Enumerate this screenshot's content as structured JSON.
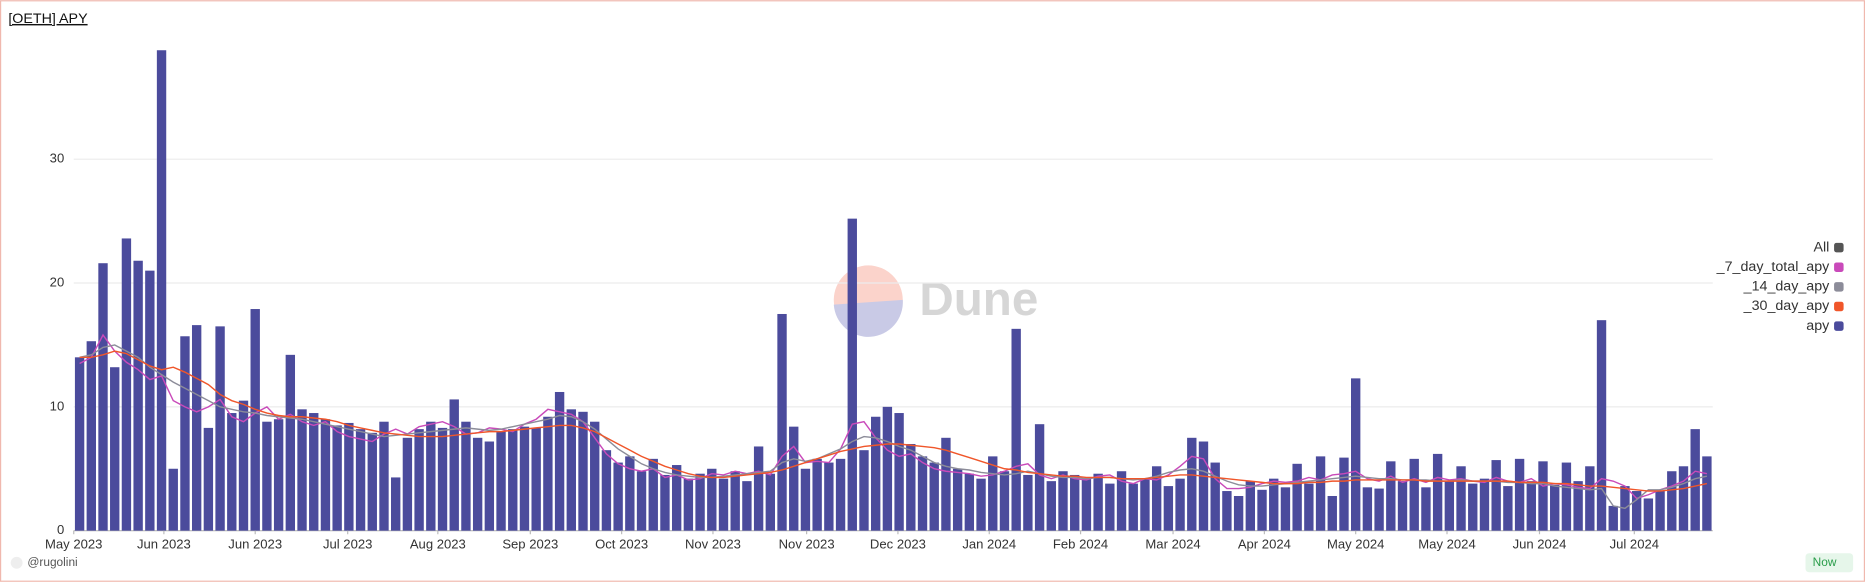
{
  "chart_data": {
    "type": "bar",
    "title": "[OETH] APY",
    "categories": [
      null,
      null,
      null,
      null,
      null,
      null,
      null,
      null,
      null,
      null,
      null,
      null,
      null,
      null,
      null,
      null,
      null,
      null,
      null,
      null,
      null,
      null,
      null,
      null,
      null,
      null,
      null,
      null,
      null,
      null,
      null,
      null,
      null,
      null,
      null,
      null,
      null,
      null,
      null,
      null,
      null,
      null,
      null,
      null,
      null,
      null,
      null,
      null,
      null,
      null,
      null,
      null,
      null,
      null,
      null,
      null,
      null,
      null,
      null,
      null,
      null,
      null,
      null,
      null,
      null,
      null,
      null,
      null,
      null,
      null,
      null,
      null,
      null,
      null,
      null,
      null,
      null,
      null,
      null,
      null,
      null,
      null,
      null,
      null,
      null,
      null,
      null,
      null,
      null,
      null,
      null,
      null,
      null,
      null,
      null,
      null,
      null,
      null,
      null,
      null,
      null,
      null,
      null,
      null,
      null,
      null,
      null,
      null,
      null,
      null,
      null,
      null,
      null,
      null,
      null,
      null,
      null,
      null,
      null,
      null,
      null,
      null,
      null,
      null,
      null,
      null,
      null,
      null,
      null,
      null,
      null,
      null,
      null,
      null,
      null,
      null,
      null,
      null,
      null,
      null
    ],
    "xticks": [
      {
        "value": 0,
        "label": "May 2023"
      },
      {
        "value": 7.7,
        "label": "Jun 2023"
      },
      {
        "value": 15.5,
        "label": "Jun 2023"
      },
      {
        "value": 23.4,
        "label": "Jul 2023"
      },
      {
        "value": 31.1,
        "label": "Aug 2023"
      },
      {
        "value": 39,
        "label": "Sep 2023"
      },
      {
        "value": 46.8,
        "label": "Oct 2023"
      },
      {
        "value": 54.6,
        "label": "Nov 2023"
      },
      {
        "value": 62.6,
        "label": "Nov 2023"
      },
      {
        "value": 70.4,
        "label": "Dec 2023"
      },
      {
        "value": 78.2,
        "label": "Jan 2024"
      },
      {
        "value": 86,
        "label": "Feb 2024"
      },
      {
        "value": 93.9,
        "label": "Mar 2024"
      },
      {
        "value": 101.7,
        "label": "Apr 2024"
      },
      {
        "value": 109.5,
        "label": "May 2024"
      },
      {
        "value": 117.3,
        "label": "May 2024"
      },
      {
        "value": 125.2,
        "label": "Jun 2024"
      },
      {
        "value": 133.3,
        "label": "Jul 2024"
      }
    ],
    "ylim": [
      0,
      39
    ],
    "yticks": [
      0,
      10,
      20,
      30
    ],
    "grid": true,
    "legend_title": "All",
    "legend_title_color": "#555555",
    "legend": "right",
    "series": [
      {
        "name": "_7_day_total_apy",
        "type": "line",
        "color": "#c94aba",
        "values": [
          13.5,
          14,
          15.8,
          14.5,
          13.6,
          13,
          12.2,
          12.5,
          10.5,
          10,
          9.6,
          10,
          10.6,
          9.2,
          8.8,
          9.5,
          10,
          9,
          9.4,
          8.8,
          8.5,
          8.8,
          8,
          7.6,
          7.4,
          7.2,
          7.8,
          8.2,
          7.8,
          8.4,
          8.6,
          8.8,
          8.4,
          7.8,
          7.9,
          8.3,
          8.2,
          8,
          8.6,
          9,
          9.8,
          9.6,
          9.4,
          8.8,
          7.5,
          6.2,
          5.4,
          5,
          4.8,
          5,
          4.3,
          4.5,
          4.1,
          4.2,
          4.6,
          4.5,
          4.8,
          4.6,
          4.8,
          4.5,
          6,
          6.8,
          5.5,
          5.6,
          5.5,
          6.6,
          8.6,
          8.8,
          7.5,
          6.5,
          6,
          6.2,
          5.5,
          5,
          4.8,
          4.7,
          4.6,
          4.4,
          4.5,
          4.8,
          5.2,
          5.4,
          4.5,
          4.2,
          4.5,
          4.2,
          4.1,
          4.4,
          4.5,
          4,
          3.8,
          4.2,
          4.1,
          4.5,
          5.2,
          6,
          5.8,
          4.2,
          3.4,
          3.4,
          3.5,
          3.8,
          4,
          3.9,
          4,
          4.3,
          4.1,
          4.5,
          4.6,
          4.8,
          4.2,
          4,
          4.4,
          3.9,
          4.2,
          3.9,
          4.3,
          4.1,
          4.2,
          4,
          3.9,
          4.3,
          4,
          3.9,
          4.2,
          3.6,
          3.8,
          3.7,
          3.5,
          3.4,
          4.2,
          4,
          3.6,
          2.6,
          2.9,
          3.3,
          3.6,
          4,
          4.8,
          4.6
        ]
      },
      {
        "name": "_14_day_apy",
        "type": "line",
        "color": "#8c8c99",
        "values": [
          14,
          14.2,
          14.8,
          15,
          14.5,
          14,
          13.2,
          12.6,
          12,
          11.5,
          11,
          10.5,
          10,
          9.8,
          9.6,
          9.5,
          9.3,
          9.2,
          9.1,
          9,
          8.8,
          8.6,
          8.4,
          8.2,
          8,
          7.8,
          7.6,
          7.7,
          7.8,
          7.9,
          8,
          8.1,
          8.2,
          8.3,
          8.2,
          8.1,
          8.2,
          8.4,
          8.6,
          8.8,
          9,
          9.3,
          9.2,
          8.8,
          8.2,
          7.4,
          6.6,
          6,
          5.4,
          5,
          4.7,
          4.5,
          4.4,
          4.3,
          4.3,
          4.4,
          4.5,
          4.6,
          4.7,
          4.8,
          5.5,
          5.8,
          5.6,
          5.8,
          6.2,
          6.6,
          7.2,
          7.6,
          7.5,
          7.2,
          6.8,
          6.5,
          6,
          5.5,
          5.2,
          5,
          4.9,
          4.7,
          4.6,
          4.5,
          4.6,
          4.8,
          4.6,
          4.4,
          4.3,
          4.3,
          4.2,
          4.3,
          4.3,
          4.2,
          4.1,
          4.2,
          4.4,
          4.7,
          4.9,
          5,
          4.8,
          4.4,
          4,
          3.7,
          3.6,
          3.6,
          3.7,
          3.8,
          3.9,
          4,
          4.1,
          4.2,
          4.3,
          4.4,
          4.3,
          4.2,
          4.2,
          4.1,
          4.1,
          4.1,
          4,
          4,
          4.1,
          4,
          4,
          4,
          3.9,
          3.9,
          3.8,
          3.8,
          3.6,
          3.5,
          3.4,
          3.3,
          3.4,
          2,
          1.8,
          2.5,
          3.3,
          3.3,
          3.5,
          3.8,
          4.2,
          4.4
        ]
      },
      {
        "name": "_30_day_apy",
        "type": "line",
        "color": "#f0562a",
        "values": [
          14,
          14,
          14.2,
          14.5,
          14.3,
          13.8,
          13.3,
          13,
          13.2,
          12.8,
          12.3,
          11.8,
          11,
          10.5,
          10.2,
          9.8,
          9.5,
          9.3,
          9.2,
          9.2,
          9.1,
          9,
          8.8,
          8.5,
          8.3,
          8.1,
          7.9,
          7.8,
          7.7,
          7.6,
          7.6,
          7.6,
          7.7,
          7.8,
          7.9,
          8,
          8,
          8.1,
          8.2,
          8.3,
          8.4,
          8.5,
          8.5,
          8.3,
          8,
          7.5,
          7,
          6.5,
          6,
          5.6,
          5.2,
          4.9,
          4.6,
          4.4,
          4.3,
          4.3,
          4.4,
          4.5,
          4.6,
          4.7,
          4.9,
          5.2,
          5.5,
          5.8,
          6.1,
          6.4,
          6.6,
          6.8,
          6.9,
          7,
          7,
          6.9,
          6.8,
          6.7,
          6.5,
          6.2,
          5.9,
          5.6,
          5.3,
          5,
          4.9,
          4.7,
          4.6,
          4.5,
          4.4,
          4.4,
          4.3,
          4.3,
          4.3,
          4.2,
          4.2,
          4.2,
          4.3,
          4.4,
          4.5,
          4.5,
          4.4,
          4.3,
          4.2,
          4.1,
          4,
          3.9,
          3.8,
          3.8,
          3.8,
          3.9,
          3.9,
          4,
          4,
          4.1,
          4.1,
          4.1,
          4.1,
          4.1,
          4.1,
          4,
          4,
          4,
          4,
          4,
          4,
          4,
          4,
          3.9,
          3.9,
          3.9,
          3.8,
          3.8,
          3.7,
          3.6,
          3.6,
          3.5,
          3.4,
          3.3,
          3.2,
          3.2,
          3.3,
          3.4,
          3.6,
          3.8
        ]
      },
      {
        "name": "apy",
        "type": "bar",
        "color": "#4b4b9c",
        "values": [
          14,
          15.3,
          21.6,
          13.2,
          23.6,
          21.8,
          21,
          38.8,
          5,
          15.7,
          16.6,
          8.3,
          16.5,
          9.5,
          10.5,
          17.9,
          8.8,
          9,
          14.2,
          9.8,
          9.5,
          9,
          8.5,
          8.7,
          8.2,
          7.9,
          8.8,
          4.3,
          7.5,
          8.2,
          8.8,
          8.3,
          10.6,
          8.8,
          7.5,
          7.2,
          8,
          8.2,
          8.4,
          8.3,
          9.2,
          11.2,
          9.8,
          9.6,
          8.8,
          6.5,
          5.5,
          6,
          4.8,
          5.8,
          4.5,
          5.3,
          4.2,
          4.6,
          5,
          4.2,
          4.8,
          4,
          6.8,
          4.6,
          17.5,
          8.4,
          5,
          5.8,
          5.5,
          5.8,
          25.2,
          6.5,
          9.2,
          10,
          9.5,
          7,
          6,
          5.5,
          7.5,
          5,
          4.6,
          4.2,
          6,
          4.8,
          16.3,
          4.5,
          8.6,
          4,
          4.8,
          4.5,
          4.2,
          4.6,
          3.8,
          4.8,
          3.8,
          4.2,
          5.2,
          3.6,
          4.2,
          7.5,
          7.2,
          5.5,
          3.2,
          2.8,
          4,
          3.3,
          4.2,
          3.5,
          5.4,
          3.8,
          6,
          2.8,
          5.9,
          12.3,
          3.5,
          3.4,
          5.6,
          4,
          5.8,
          3.5,
          6.2,
          4,
          5.2,
          3.8,
          4.2,
          5.7,
          3.6,
          5.8,
          4,
          5.6,
          3.7,
          5.5,
          4,
          5.2,
          17,
          2,
          3.6,
          3.2,
          2.6,
          3.2,
          4.8,
          5.2,
          8.2,
          6
        ]
      }
    ]
  },
  "watermark": "Dune",
  "footer": {
    "author": "@rugolini",
    "status": "Now"
  }
}
